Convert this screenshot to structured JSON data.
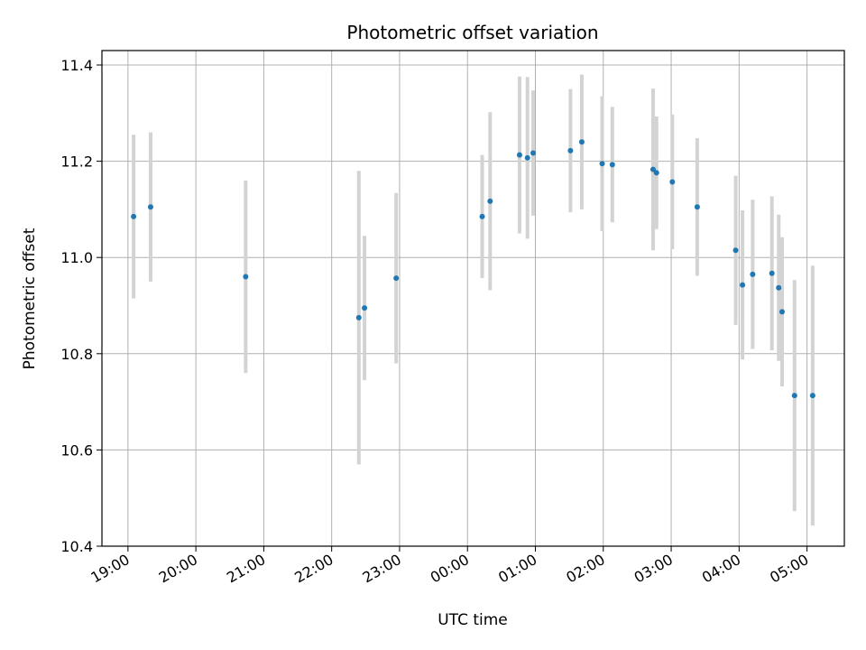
{
  "chart_data": {
    "type": "scatter",
    "title": "Photometric offset variation",
    "xlabel": "UTC time",
    "ylabel": "Photometric offset",
    "x_axis_kind": "time (HH:MM, UTC), spanning midnight",
    "xlim": [
      "18:37",
      "05:33"
    ],
    "ylim": [
      10.4,
      11.43
    ],
    "x_ticks": [
      "19:00",
      "20:00",
      "21:00",
      "22:00",
      "23:00",
      "00:00",
      "01:00",
      "02:00",
      "03:00",
      "04:00",
      "05:00"
    ],
    "y_ticks": [
      "10.4",
      "10.6",
      "10.8",
      "11.0",
      "11.2",
      "11.4"
    ],
    "grid": true,
    "colors": {
      "point": "#1f77b4",
      "errorbar": "#d3d3d3",
      "grid": "#b0b0b0",
      "axes": "#000000"
    },
    "series": [
      {
        "points": [
          {
            "x": "19:05",
            "y": 11.085,
            "err": 0.17
          },
          {
            "x": "19:20",
            "y": 11.105,
            "err": 0.155
          },
          {
            "x": "20:44",
            "y": 10.96,
            "err": 0.2
          },
          {
            "x": "22:24",
            "y": 10.875,
            "err": 0.305
          },
          {
            "x": "22:29",
            "y": 10.895,
            "err": 0.15
          },
          {
            "x": "22:57",
            "y": 10.957,
            "err": 0.177
          },
          {
            "x": "00:13",
            "y": 11.085,
            "err": 0.128
          },
          {
            "x": "00:20",
            "y": 11.117,
            "err": 0.185
          },
          {
            "x": "00:46",
            "y": 11.213,
            "err": 0.163
          },
          {
            "x": "00:53",
            "y": 11.207,
            "err": 0.168
          },
          {
            "x": "00:58",
            "y": 11.217,
            "err": 0.13
          },
          {
            "x": "01:31",
            "y": 11.222,
            "err": 0.128
          },
          {
            "x": "01:41",
            "y": 11.24,
            "err": 0.14
          },
          {
            "x": "01:59",
            "y": 11.195,
            "err": 0.14
          },
          {
            "x": "02:08",
            "y": 11.193,
            "err": 0.12
          },
          {
            "x": "02:44",
            "y": 11.183,
            "err": 0.168
          },
          {
            "x": "02:47",
            "y": 11.176,
            "err": 0.117
          },
          {
            "x": "03:01",
            "y": 11.157,
            "err": 0.14
          },
          {
            "x": "03:23",
            "y": 11.105,
            "err": 0.143
          },
          {
            "x": "03:57",
            "y": 11.015,
            "err": 0.155
          },
          {
            "x": "04:03",
            "y": 10.943,
            "err": 0.155
          },
          {
            "x": "04:12",
            "y": 10.965,
            "err": 0.155
          },
          {
            "x": "04:29",
            "y": 10.967,
            "err": 0.16
          },
          {
            "x": "04:35",
            "y": 10.937,
            "err": 0.152
          },
          {
            "x": "04:38",
            "y": 10.887,
            "err": 0.155
          },
          {
            "x": "04:49",
            "y": 10.713,
            "err": 0.24
          },
          {
            "x": "05:05",
            "y": 10.713,
            "err": 0.27
          }
        ]
      }
    ]
  }
}
